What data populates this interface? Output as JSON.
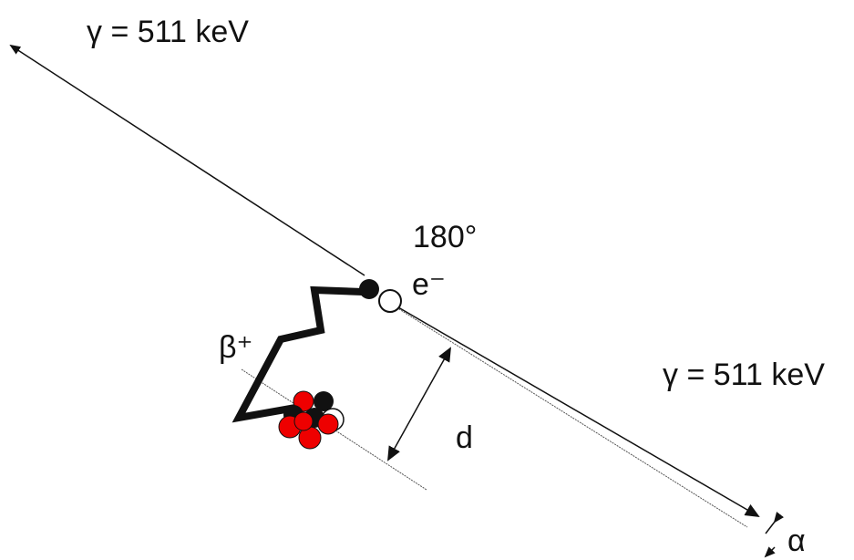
{
  "labels": {
    "gamma_top": "γ = 511 keV",
    "angle": "180°",
    "electron": "e⁻",
    "positron": "β⁺",
    "gamma_right": "γ = 511 keV",
    "distance": "d",
    "deviation": "α"
  }
}
